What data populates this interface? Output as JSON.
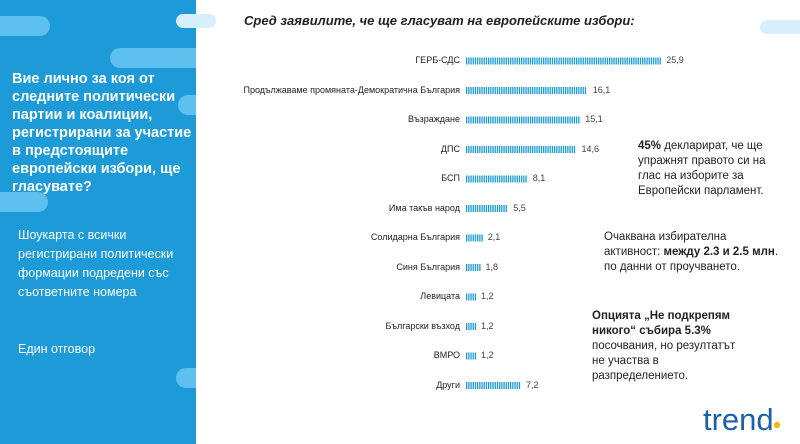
{
  "left_panel": {
    "question": "Вие лично за коя от следните политически партии и коалиции, регистрирани за участие в предстоящите европейски избори, ще гласувате?",
    "description": "Шоукарта с всички регистрирани политически формации подредени със съответните номера",
    "answer_type": "Един отговор"
  },
  "colors": {
    "panel_blue": "#1d9bd8",
    "bar_blue": "#1d9bd8",
    "accent_light": "#5ec0ee",
    "logo_yellow": "#f5b916"
  },
  "chart_data": {
    "type": "bar",
    "orientation": "horizontal",
    "title": "Сред заявилите, че ще гласуват на европейските избори:",
    "categories": [
      "ГЕРБ-СДС",
      "Продължаваме промяната-Демократична България",
      "Възраждане",
      "ДПС",
      "БСП",
      "Има такъв народ",
      "Солидарна България",
      "Синя България",
      "Левицата",
      "Български възход",
      "ВМРО",
      "Други"
    ],
    "values": [
      25.9,
      16.1,
      15.1,
      14.6,
      8.1,
      5.5,
      2.1,
      1.8,
      1.2,
      1.2,
      1.2,
      7.2
    ],
    "value_labels": [
      "25,9",
      "16,1",
      "15,1",
      "14,6",
      "8,1",
      "5,5",
      "2,1",
      "1,8",
      "1,2",
      "1,2",
      "1,2",
      "7,2"
    ],
    "xlim": [
      0,
      26
    ],
    "grid": false,
    "legend": "none"
  },
  "notes": {
    "turnout_share_bold": "45%",
    "turnout_share_text": " декларират, че ще упражнят правото си на глас на изборите за Европейски парламент.",
    "expected_turnout_text": "Очаквана избирателна активност: ",
    "expected_turnout_bold": "между 2.3 и 2.5 млн",
    "expected_turnout_suffix": ". по данни от проучването.",
    "none_option_bold": "Опцията „Не подкрепям никого“ събира 5.3%",
    "none_option_text": " посочвания, но резултатът не участва в разпределението."
  },
  "logo": {
    "text": "trend",
    "icon": "trend-logo-icon"
  }
}
